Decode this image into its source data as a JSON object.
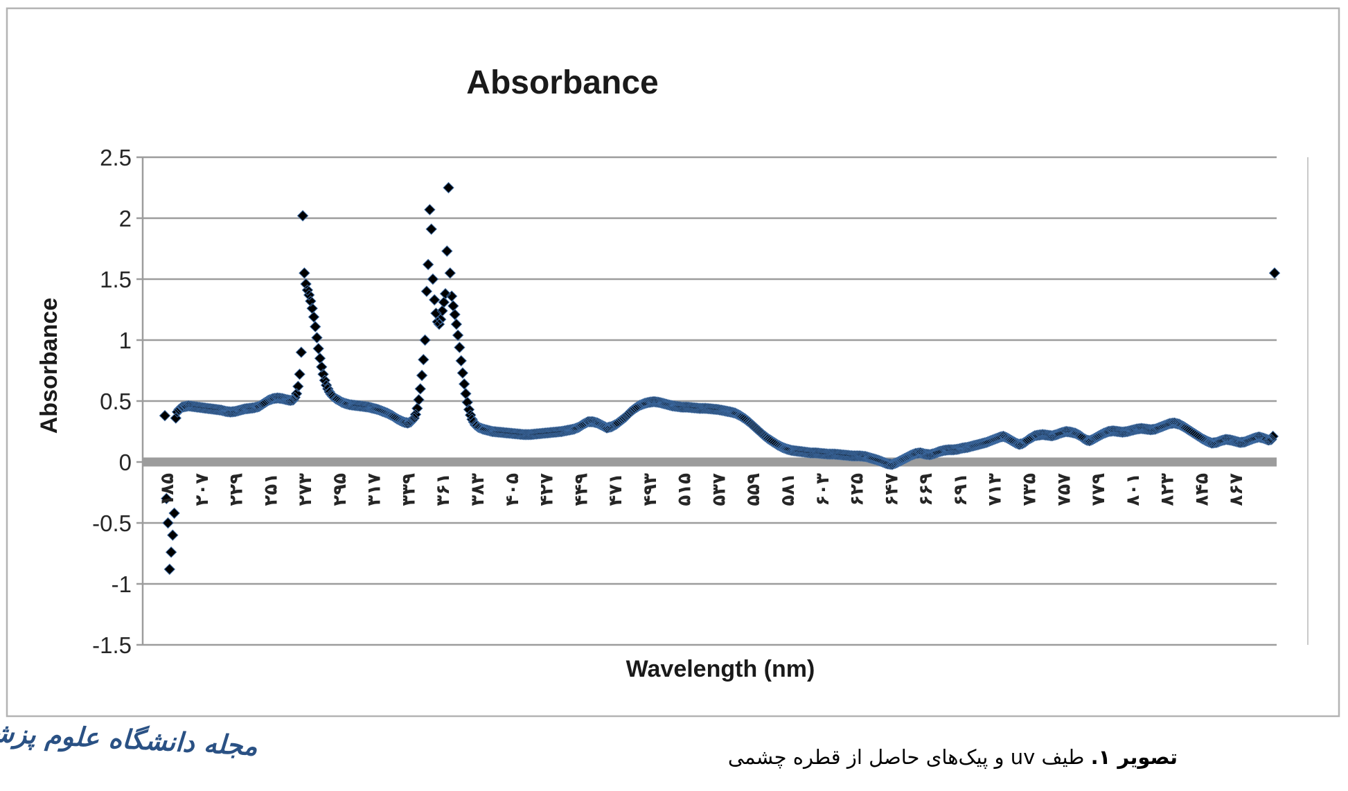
{
  "chart_data": {
    "type": "line",
    "title": "Absorbance",
    "xlabel": "Wavelength (nm)",
    "ylabel": "Absorbance",
    "marker": "diamond",
    "grid": "horizontal",
    "legend": "none",
    "ylim": [
      -1.5,
      2.5
    ],
    "y_ticks": [
      2.5,
      2,
      1.5,
      1,
      0.5,
      0,
      -0.5,
      -1,
      -1.5
    ],
    "y_tick_labels": [
      "2.5",
      "2",
      "1.5",
      "1",
      "0.5",
      "0",
      "-0.5",
      "-1",
      "-1.5"
    ],
    "x_range": [
      185,
      893
    ],
    "x_tick_values": [
      185,
      207,
      229,
      251,
      273,
      295,
      317,
      339,
      361,
      383,
      405,
      427,
      449,
      471,
      493,
      515,
      537,
      559,
      581,
      603,
      625,
      647,
      669,
      691,
      713,
      735,
      757,
      779,
      801,
      823,
      845,
      867
    ],
    "x_tick_labels": [
      "۱۸۵",
      "۲۰۷",
      "۲۲۹",
      "۲۵۱",
      "۲۷۳",
      "۲۹۵",
      "۳۱۷",
      "۳۳۹",
      "۳۶۱",
      "۳۸۳",
      "۴۰۵",
      "۴۲۷",
      "۴۴۹",
      "۴۷۱",
      "۴۹۳",
      "۵۱۵",
      "۵۳۷",
      "۵۵۹",
      "۵۸۱",
      "۶۰۳",
      "۶۲۵",
      "۶۴۷",
      "۶۶۹",
      "۶۹۱",
      "۷۱۳",
      "۷۳۵",
      "۷۵۷",
      "۷۷۹",
      "۸۰۱",
      "۸۲۳",
      "۸۴۵",
      "۸۶۷"
    ],
    "colors": {
      "series": "#4f81bd",
      "series_outline": "#3a679e",
      "gridline": "#9c9c9c",
      "zero_axis": "#9c9c9c",
      "plot_right_border": "#c9c9c9",
      "chart_border": "#b3b3b3",
      "text": "#1a1a1a"
    },
    "notable_peaks": [
      {
        "wavelength_nm": 273,
        "absorbance": 2.02
      },
      {
        "wavelength_nm": 354,
        "absorbance": 2.07
      },
      {
        "wavelength_nm": 366,
        "absorbance": 2.25
      },
      {
        "wavelength_nm": 893,
        "absorbance": 1.55
      },
      {
        "wavelength_nm": 188,
        "absorbance": -0.88
      }
    ],
    "series": [
      {
        "name": "Absorbance",
        "sample_step_nm": 1,
        "control_points": [
          [
            185,
            0.38
          ],
          [
            186,
            -0.3
          ],
          [
            187,
            -0.5
          ],
          [
            188,
            -0.88
          ],
          [
            189,
            -0.74
          ],
          [
            190,
            -0.6
          ],
          [
            191,
            -0.42
          ],
          [
            192,
            0.36
          ],
          [
            193,
            0.41
          ],
          [
            194,
            0.43
          ],
          [
            196,
            0.45
          ],
          [
            198,
            0.455
          ],
          [
            200,
            0.46
          ],
          [
            203,
            0.455
          ],
          [
            206,
            0.45
          ],
          [
            209,
            0.445
          ],
          [
            212,
            0.44
          ],
          [
            215,
            0.435
          ],
          [
            218,
            0.43
          ],
          [
            221,
            0.425
          ],
          [
            224,
            0.415
          ],
          [
            227,
            0.41
          ],
          [
            230,
            0.415
          ],
          [
            233,
            0.425
          ],
          [
            236,
            0.435
          ],
          [
            239,
            0.44
          ],
          [
            242,
            0.445
          ],
          [
            245,
            0.455
          ],
          [
            248,
            0.48
          ],
          [
            251,
            0.505
          ],
          [
            254,
            0.52
          ],
          [
            257,
            0.525
          ],
          [
            260,
            0.52
          ],
          [
            263,
            0.51
          ],
          [
            265,
            0.505
          ],
          [
            267,
            0.51
          ],
          [
            268,
            0.53
          ],
          [
            269,
            0.56
          ],
          [
            270,
            0.62
          ],
          [
            271,
            0.72
          ],
          [
            272,
            0.9
          ],
          [
            273,
            2.02
          ],
          [
            274,
            1.55
          ],
          [
            275,
            1.46
          ],
          [
            276,
            1.41
          ],
          [
            277,
            1.37
          ],
          [
            278,
            1.32
          ],
          [
            279,
            1.26
          ],
          [
            280,
            1.19
          ],
          [
            281,
            1.11
          ],
          [
            282,
            1.02
          ],
          [
            283,
            0.93
          ],
          [
            284,
            0.85
          ],
          [
            285,
            0.78
          ],
          [
            286,
            0.72
          ],
          [
            287,
            0.67
          ],
          [
            288,
            0.63
          ],
          [
            289,
            0.6
          ],
          [
            290,
            0.575
          ],
          [
            291,
            0.555
          ],
          [
            292,
            0.54
          ],
          [
            294,
            0.52
          ],
          [
            296,
            0.505
          ],
          [
            298,
            0.49
          ],
          [
            300,
            0.48
          ],
          [
            303,
            0.47
          ],
          [
            306,
            0.465
          ],
          [
            309,
            0.46
          ],
          [
            312,
            0.455
          ],
          [
            315,
            0.45
          ],
          [
            318,
            0.44
          ],
          [
            321,
            0.43
          ],
          [
            324,
            0.415
          ],
          [
            327,
            0.4
          ],
          [
            330,
            0.38
          ],
          [
            333,
            0.355
          ],
          [
            336,
            0.335
          ],
          [
            338,
            0.325
          ],
          [
            340,
            0.32
          ],
          [
            342,
            0.33
          ],
          [
            344,
            0.36
          ],
          [
            345,
            0.39
          ],
          [
            346,
            0.44
          ],
          [
            347,
            0.51
          ],
          [
            348,
            0.6
          ],
          [
            349,
            0.71
          ],
          [
            350,
            0.84
          ],
          [
            351,
            1.0
          ],
          [
            352,
            1.4
          ],
          [
            353,
            1.62
          ],
          [
            354,
            2.07
          ],
          [
            355,
            1.91
          ],
          [
            356,
            1.5
          ],
          [
            357,
            1.33
          ],
          [
            358,
            1.22
          ],
          [
            359,
            1.15
          ],
          [
            360,
            1.13
          ],
          [
            361,
            1.17
          ],
          [
            362,
            1.24
          ],
          [
            363,
            1.31
          ],
          [
            364,
            1.38
          ],
          [
            365,
            1.73
          ],
          [
            366,
            2.25
          ],
          [
            367,
            1.55
          ],
          [
            368,
            1.36
          ],
          [
            369,
            1.28
          ],
          [
            370,
            1.21
          ],
          [
            371,
            1.13
          ],
          [
            372,
            1.04
          ],
          [
            373,
            0.94
          ],
          [
            374,
            0.83
          ],
          [
            375,
            0.73
          ],
          [
            376,
            0.64
          ],
          [
            377,
            0.56
          ],
          [
            378,
            0.49
          ],
          [
            379,
            0.43
          ],
          [
            380,
            0.385
          ],
          [
            381,
            0.35
          ],
          [
            383,
            0.305
          ],
          [
            385,
            0.285
          ],
          [
            388,
            0.27
          ],
          [
            391,
            0.26
          ],
          [
            394,
            0.25
          ],
          [
            398,
            0.245
          ],
          [
            402,
            0.24
          ],
          [
            406,
            0.235
          ],
          [
            410,
            0.23
          ],
          [
            414,
            0.225
          ],
          [
            418,
            0.225
          ],
          [
            422,
            0.23
          ],
          [
            426,
            0.235
          ],
          [
            430,
            0.24
          ],
          [
            434,
            0.245
          ],
          [
            438,
            0.25
          ],
          [
            442,
            0.26
          ],
          [
            446,
            0.27
          ],
          [
            449,
            0.285
          ],
          [
            452,
            0.31
          ],
          [
            455,
            0.33
          ],
          [
            458,
            0.33
          ],
          [
            461,
            0.32
          ],
          [
            464,
            0.3
          ],
          [
            467,
            0.28
          ],
          [
            470,
            0.29
          ],
          [
            473,
            0.31
          ],
          [
            476,
            0.34
          ],
          [
            479,
            0.37
          ],
          [
            482,
            0.41
          ],
          [
            485,
            0.44
          ],
          [
            488,
            0.465
          ],
          [
            491,
            0.48
          ],
          [
            494,
            0.49
          ],
          [
            497,
            0.495
          ],
          [
            500,
            0.49
          ],
          [
            503,
            0.48
          ],
          [
            506,
            0.47
          ],
          [
            509,
            0.46
          ],
          [
            512,
            0.455
          ],
          [
            515,
            0.45
          ],
          [
            518,
            0.45
          ],
          [
            522,
            0.445
          ],
          [
            526,
            0.44
          ],
          [
            530,
            0.44
          ],
          [
            534,
            0.435
          ],
          [
            538,
            0.43
          ],
          [
            542,
            0.42
          ],
          [
            546,
            0.41
          ],
          [
            549,
            0.4
          ],
          [
            552,
            0.38
          ],
          [
            555,
            0.355
          ],
          [
            558,
            0.325
          ],
          [
            561,
            0.29
          ],
          [
            564,
            0.255
          ],
          [
            567,
            0.22
          ],
          [
            570,
            0.19
          ],
          [
            573,
            0.165
          ],
          [
            576,
            0.14
          ],
          [
            579,
            0.12
          ],
          [
            582,
            0.105
          ],
          [
            585,
            0.095
          ],
          [
            588,
            0.09
          ],
          [
            591,
            0.085
          ],
          [
            594,
            0.08
          ],
          [
            597,
            0.075
          ],
          [
            600,
            0.075
          ],
          [
            604,
            0.07
          ],
          [
            608,
            0.065
          ],
          [
            612,
            0.065
          ],
          [
            616,
            0.06
          ],
          [
            620,
            0.055
          ],
          [
            624,
            0.05
          ],
          [
            628,
            0.05
          ],
          [
            632,
            0.045
          ],
          [
            636,
            0.03
          ],
          [
            640,
            0.015
          ],
          [
            643,
            0.0
          ],
          [
            646,
            -0.015
          ],
          [
            649,
            -0.02
          ],
          [
            652,
            -0.005
          ],
          [
            655,
            0.015
          ],
          [
            658,
            0.035
          ],
          [
            661,
            0.055
          ],
          [
            664,
            0.07
          ],
          [
            667,
            0.075
          ],
          [
            670,
            0.065
          ],
          [
            673,
            0.06
          ],
          [
            676,
            0.07
          ],
          [
            679,
            0.085
          ],
          [
            682,
            0.095
          ],
          [
            685,
            0.1
          ],
          [
            688,
            0.1
          ],
          [
            691,
            0.105
          ],
          [
            694,
            0.115
          ],
          [
            697,
            0.12
          ],
          [
            700,
            0.13
          ],
          [
            703,
            0.14
          ],
          [
            706,
            0.15
          ],
          [
            709,
            0.16
          ],
          [
            712,
            0.175
          ],
          [
            715,
            0.19
          ],
          [
            718,
            0.205
          ],
          [
            720,
            0.21
          ],
          [
            722,
            0.2
          ],
          [
            724,
            0.185
          ],
          [
            726,
            0.17
          ],
          [
            728,
            0.155
          ],
          [
            730,
            0.145
          ],
          [
            732,
            0.15
          ],
          [
            734,
            0.165
          ],
          [
            736,
            0.185
          ],
          [
            738,
            0.2
          ],
          [
            740,
            0.215
          ],
          [
            742,
            0.22
          ],
          [
            745,
            0.225
          ],
          [
            748,
            0.22
          ],
          [
            751,
            0.215
          ],
          [
            754,
            0.225
          ],
          [
            757,
            0.24
          ],
          [
            760,
            0.25
          ],
          [
            763,
            0.245
          ],
          [
            766,
            0.235
          ],
          [
            769,
            0.215
          ],
          [
            771,
            0.195
          ],
          [
            773,
            0.18
          ],
          [
            775,
            0.175
          ],
          [
            777,
            0.185
          ],
          [
            779,
            0.2
          ],
          [
            781,
            0.215
          ],
          [
            784,
            0.235
          ],
          [
            787,
            0.25
          ],
          [
            790,
            0.255
          ],
          [
            793,
            0.25
          ],
          [
            796,
            0.245
          ],
          [
            799,
            0.25
          ],
          [
            802,
            0.26
          ],
          [
            805,
            0.27
          ],
          [
            808,
            0.275
          ],
          [
            811,
            0.27
          ],
          [
            814,
            0.265
          ],
          [
            817,
            0.27
          ],
          [
            820,
            0.285
          ],
          [
            823,
            0.3
          ],
          [
            826,
            0.315
          ],
          [
            829,
            0.32
          ],
          [
            832,
            0.31
          ],
          [
            835,
            0.29
          ],
          [
            838,
            0.265
          ],
          [
            841,
            0.24
          ],
          [
            844,
            0.215
          ],
          [
            847,
            0.19
          ],
          [
            850,
            0.17
          ],
          [
            853,
            0.155
          ],
          [
            856,
            0.16
          ],
          [
            859,
            0.175
          ],
          [
            862,
            0.185
          ],
          [
            865,
            0.18
          ],
          [
            868,
            0.17
          ],
          [
            871,
            0.16
          ],
          [
            874,
            0.165
          ],
          [
            877,
            0.18
          ],
          [
            880,
            0.195
          ],
          [
            883,
            0.205
          ],
          [
            886,
            0.195
          ],
          [
            889,
            0.18
          ],
          [
            891,
            0.185
          ],
          [
            892,
            0.21
          ],
          [
            893,
            1.55
          ]
        ]
      }
    ]
  },
  "caption": {
    "bold": "تصویر ۱.",
    "rest": " طیف uv و پیک‌های حاصل از قطره چشمی"
  },
  "logo": {
    "text": "مجله دانشگاه علوم پزشکی گیلان"
  }
}
